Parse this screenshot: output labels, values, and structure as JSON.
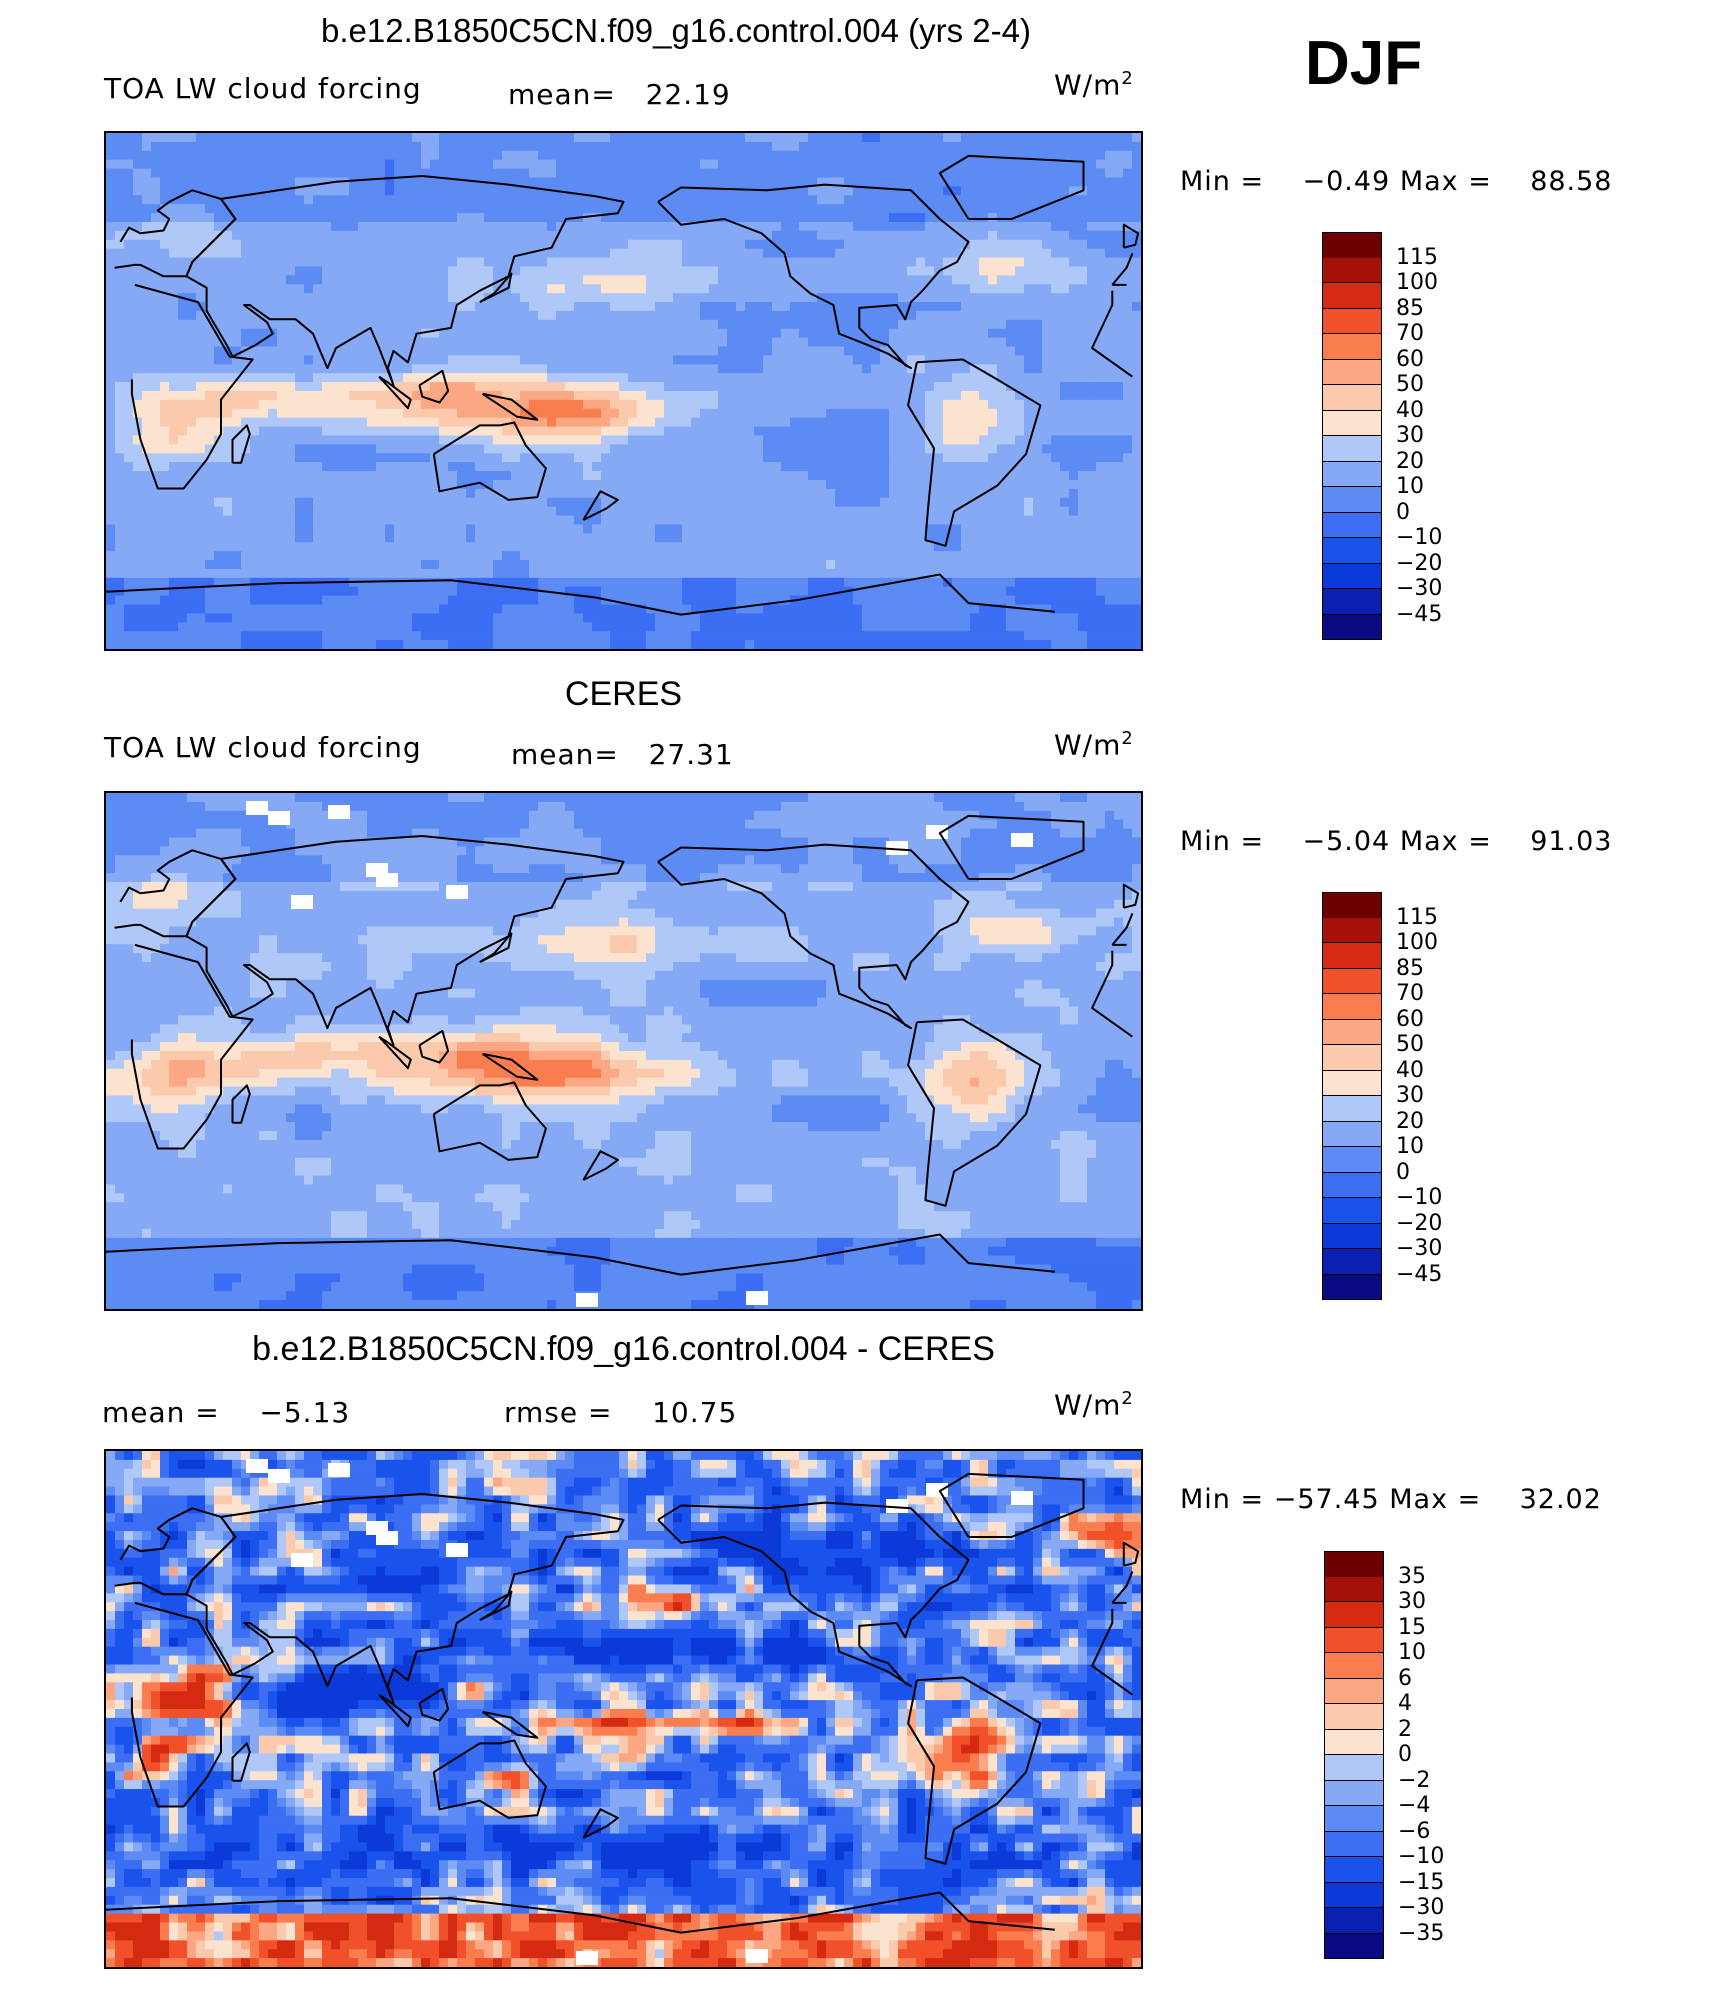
{
  "season": "DJF",
  "palette_main": [
    "#0a0a82",
    "#0a20b0",
    "#0c3ad8",
    "#1a52ec",
    "#3b6ef2",
    "#5c8bf4",
    "#86a9f6",
    "#b0c8f8",
    "#d6e4fa",
    "#fbe3d0",
    "#fbc9ac",
    "#fba783",
    "#fa7d4f",
    "#f0502a",
    "#d42a12",
    "#a51008",
    "#6e0000"
  ],
  "palette_diff": [
    "#0a0a82",
    "#0a20b0",
    "#0c3ad8",
    "#1a52ec",
    "#3b6ef2",
    "#5c8bf4",
    "#86a9f6",
    "#b0c8f8",
    "#d6e4fa",
    "#fbe3d0",
    "#fbc9ac",
    "#fba783",
    "#fa7d4f",
    "#f0502a",
    "#d42a12",
    "#a51008",
    "#6e0000"
  ],
  "chart_data": [
    {
      "type": "heatmap",
      "title": "b.e12.B1850C5CN.f09_g16.control.004 (yrs 2-4)",
      "variable": "TOA LW cloud forcing",
      "mean_label": "mean=",
      "mean": "22.19",
      "units": "W/m",
      "units_exp": "2",
      "min_label": "Min  =",
      "min": "−0.49",
      "max_label": "Max  =",
      "max": "88.58",
      "colorbar_levels": [
        "115",
        "100",
        "85",
        "70",
        "60",
        "50",
        "40",
        "30",
        "20",
        "10",
        "0",
        "−10",
        "−20",
        "−30",
        "−45"
      ]
    },
    {
      "type": "heatmap",
      "title": "CERES",
      "variable": "TOA LW cloud forcing",
      "mean_label": "mean=",
      "mean": "27.31",
      "units": "W/m",
      "units_exp": "2",
      "min_label": "Min  =",
      "min": "−5.04",
      "max_label": "Max  =",
      "max": "91.03",
      "colorbar_levels": [
        "115",
        "100",
        "85",
        "70",
        "60",
        "50",
        "40",
        "30",
        "20",
        "10",
        "0",
        "−10",
        "−20",
        "−30",
        "−45"
      ]
    },
    {
      "type": "heatmap",
      "title": "b.e12.B1850C5CN.f09_g16.control.004 - CERES",
      "mean_label": "mean  =",
      "mean": "−5.13",
      "rmse_label": "rmse  =",
      "rmse": "10.75",
      "units": "W/m",
      "units_exp": "2",
      "min_label": "Min  =",
      "min": "−57.45",
      "max_label": "Max  =",
      "max": "32.02",
      "colorbar_levels": [
        "35",
        "30",
        "15",
        "10",
        "6",
        "4",
        "2",
        "0",
        "−2",
        "−4",
        "−6",
        "−10",
        "−15",
        "−30",
        "−35"
      ]
    }
  ]
}
